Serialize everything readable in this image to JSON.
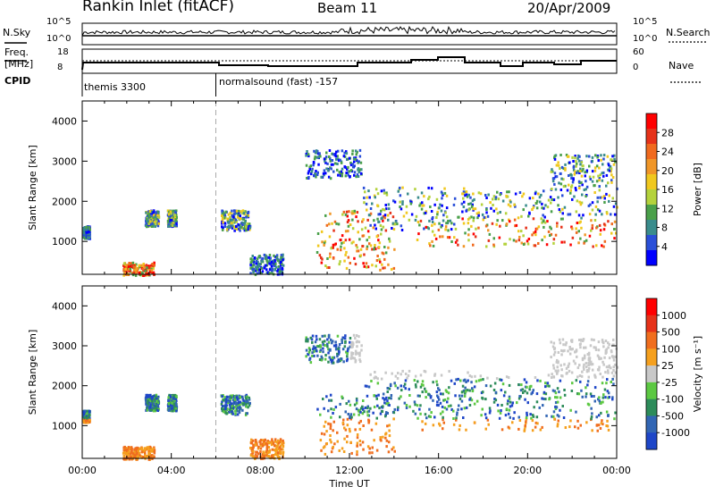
{
  "header": {
    "station": "Rankin Inlet (fitACF)",
    "beam": "Beam 11",
    "date": "20/Apr/2009"
  },
  "top_panel": {
    "left_label": "N.Sky",
    "right_label": "N.Search",
    "left_ticks": [
      "10^5",
      "10^0"
    ],
    "right_ticks": [
      "10^5",
      "10^0"
    ]
  },
  "freq_panel": {
    "left_label_1": "Freq.",
    "left_label_2": "[MHz]",
    "right_label": "Nave",
    "left_ticks": [
      "18",
      "8"
    ],
    "right_ticks": [
      "60",
      "0"
    ]
  },
  "cpid": {
    "label": "CPID",
    "modes": [
      "themis 3300",
      "normalsound (fast) -157"
    ]
  },
  "chart_data": [
    {
      "type": "heatmap",
      "panel": "power",
      "ylabel": "Slant Range [km]",
      "y_ticks": [
        "1000",
        "2000",
        "3000",
        "4000"
      ],
      "ylim": [
        180,
        4500
      ],
      "colorbar_label": "Power [dB]",
      "colorbar_ticks": [
        "4",
        "8",
        "12",
        "16",
        "20",
        "24",
        "28"
      ],
      "colorbar_colors": [
        "#0000ff",
        "#2a4fd8",
        "#3a8c8c",
        "#4aa04a",
        "#b4d23c",
        "#f0c81e",
        "#f09628",
        "#f06a1e",
        "#e63219",
        "#ff0000"
      ],
      "clim": [
        0,
        32
      ]
    },
    {
      "type": "heatmap",
      "panel": "velocity",
      "ylabel": "Slant Range [km]",
      "y_ticks": [
        "1000",
        "2000",
        "3000",
        "4000"
      ],
      "ylim": [
        180,
        4500
      ],
      "colorbar_label": "Velocity",
      "colorbar_unit": "[m s⁻¹]",
      "colorbar_ticks": [
        "1000",
        "500",
        "100",
        "25",
        "-25",
        "-100",
        "-500",
        "-1000"
      ],
      "colorbar_colors": [
        "#1e46c8",
        "#3266b4",
        "#2d8c5a",
        "#5cc842",
        "#c8c8c8",
        "#f5a01e",
        "#f06e1e",
        "#e63219",
        "#ff0000"
      ]
    }
  ],
  "x_axis": {
    "label": "Time UT",
    "ticks": [
      "00:00",
      "04:00",
      "08:00",
      "12:00",
      "16:00",
      "20:00",
      "00:00"
    ]
  }
}
